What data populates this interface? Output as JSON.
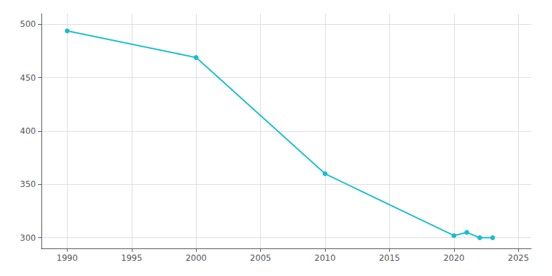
{
  "chart_data": {
    "type": "line",
    "x": [
      1990,
      2000,
      2010,
      2020,
      2021,
      2022,
      2023
    ],
    "values": [
      494,
      469,
      360,
      302,
      305,
      300,
      300
    ],
    "color": "#17becf",
    "marker": "circle",
    "xlim": [
      1988,
      2026
    ],
    "ylim": [
      290,
      510
    ],
    "xticks": [
      1990,
      1995,
      2000,
      2005,
      2010,
      2015,
      2020,
      2025
    ],
    "yticks": [
      300,
      350,
      400,
      450,
      500
    ],
    "grid": true
  }
}
